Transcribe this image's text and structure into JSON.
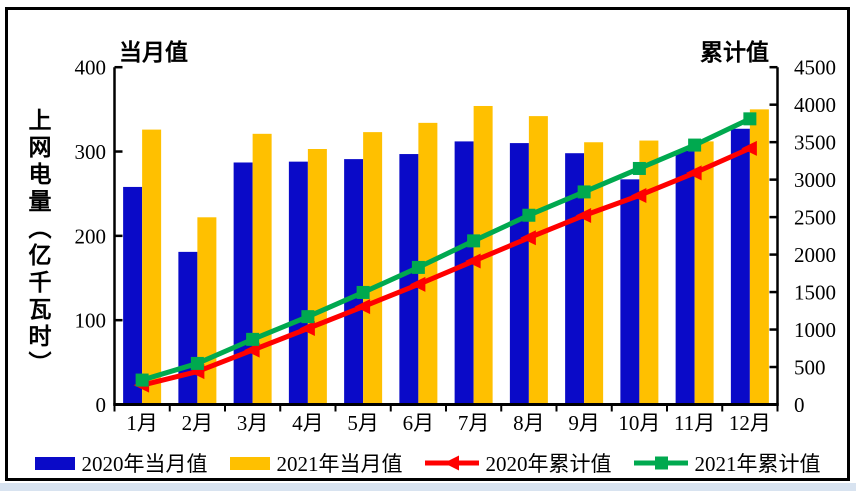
{
  "page": {
    "bottom_strip_color": "#D8E3F0",
    "panel_border_color": "#000000"
  },
  "chart_data": {
    "type": "bar",
    "categories": [
      "1月",
      "2月",
      "3月",
      "4月",
      "5月",
      "6月",
      "7月",
      "8月",
      "9月",
      "10月",
      "11月",
      "12月"
    ],
    "left_axis": {
      "title": "当月值",
      "label": "上网电量（亿千瓦时）",
      "min": 0,
      "max": 400,
      "step": 100,
      "ticks": [
        0,
        100,
        200,
        300,
        400
      ]
    },
    "right_axis": {
      "title": "累计值",
      "min": 0,
      "max": 4500,
      "step": 500,
      "ticks": [
        0,
        500,
        1000,
        1500,
        2000,
        2500,
        3000,
        3500,
        4000,
        4500
      ]
    },
    "series": [
      {
        "name": "2020年当月值",
        "kind": "bar",
        "axis": "left",
        "color": "#0A0AC8",
        "values": [
          258,
          181,
          287,
          288,
          291,
          297,
          312,
          310,
          298,
          267,
          301,
          327
        ]
      },
      {
        "name": "2021年当月值",
        "kind": "bar",
        "axis": "left",
        "color": "#FFC000",
        "values": [
          326,
          222,
          321,
          303,
          323,
          334,
          354,
          342,
          311,
          313,
          312,
          350
        ]
      },
      {
        "name": "2020年累计值",
        "kind": "line",
        "axis": "right",
        "color": "#FF0000",
        "marker": "triangle-left",
        "values": [
          258,
          439,
          726,
          1014,
          1305,
          1602,
          1914,
          2224,
          2522,
          2789,
          3090,
          3417
        ]
      },
      {
        "name": "2021年累计值",
        "kind": "line",
        "axis": "right",
        "color": "#00A94F",
        "marker": "square",
        "values": [
          326,
          548,
          869,
          1172,
          1495,
          1829,
          2183,
          2525,
          2836,
          3149,
          3461,
          3811
        ]
      }
    ],
    "grid": false,
    "legend_position": "bottom"
  }
}
